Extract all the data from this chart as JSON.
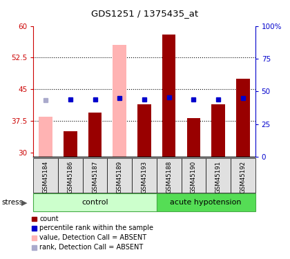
{
  "title": "GDS1251 / 1375435_at",
  "samples": [
    "GSM45184",
    "GSM45186",
    "GSM45187",
    "GSM45189",
    "GSM45193",
    "GSM45188",
    "GSM45190",
    "GSM45191",
    "GSM45192"
  ],
  "group_names": [
    "control",
    "acute hypotension"
  ],
  "group_control_count": 5,
  "group_acute_count": 4,
  "bar_values": [
    38.5,
    35.0,
    39.5,
    55.5,
    41.5,
    58.0,
    38.2,
    41.5,
    47.5
  ],
  "absent_flags": [
    true,
    false,
    false,
    true,
    false,
    false,
    false,
    false,
    false
  ],
  "rank_values": [
    43.0,
    43.5,
    43.5,
    45.0,
    43.5,
    45.5,
    43.5,
    44.0,
    45.0
  ],
  "rank_absent_flags": [
    true,
    false,
    false,
    false,
    false,
    false,
    false,
    false,
    false
  ],
  "ylim_left": [
    29,
    60
  ],
  "yticks_left": [
    30,
    37.5,
    45,
    52.5,
    60
  ],
  "yticks_right": [
    0,
    25,
    50,
    75,
    100
  ],
  "bar_color_normal": "#990000",
  "bar_color_absent": "#ffb3b3",
  "rank_color_normal": "#0000cc",
  "rank_color_absent": "#aaaacc",
  "group_bg_control": "#ccffcc",
  "group_bg_acute": "#55dd55",
  "axis_color_left": "#cc0000",
  "axis_color_right": "#0000cc",
  "dotted_line_color": "#000000",
  "stress_label": "stress",
  "bar_width": 0.55,
  "rank_marker_size": 4,
  "legend_items": [
    {
      "label": "count",
      "color": "#990000"
    },
    {
      "label": "percentile rank within the sample",
      "color": "#0000cc"
    },
    {
      "label": "value, Detection Call = ABSENT",
      "color": "#ffb3b3"
    },
    {
      "label": "rank, Detection Call = ABSENT",
      "color": "#aaaacc"
    }
  ]
}
